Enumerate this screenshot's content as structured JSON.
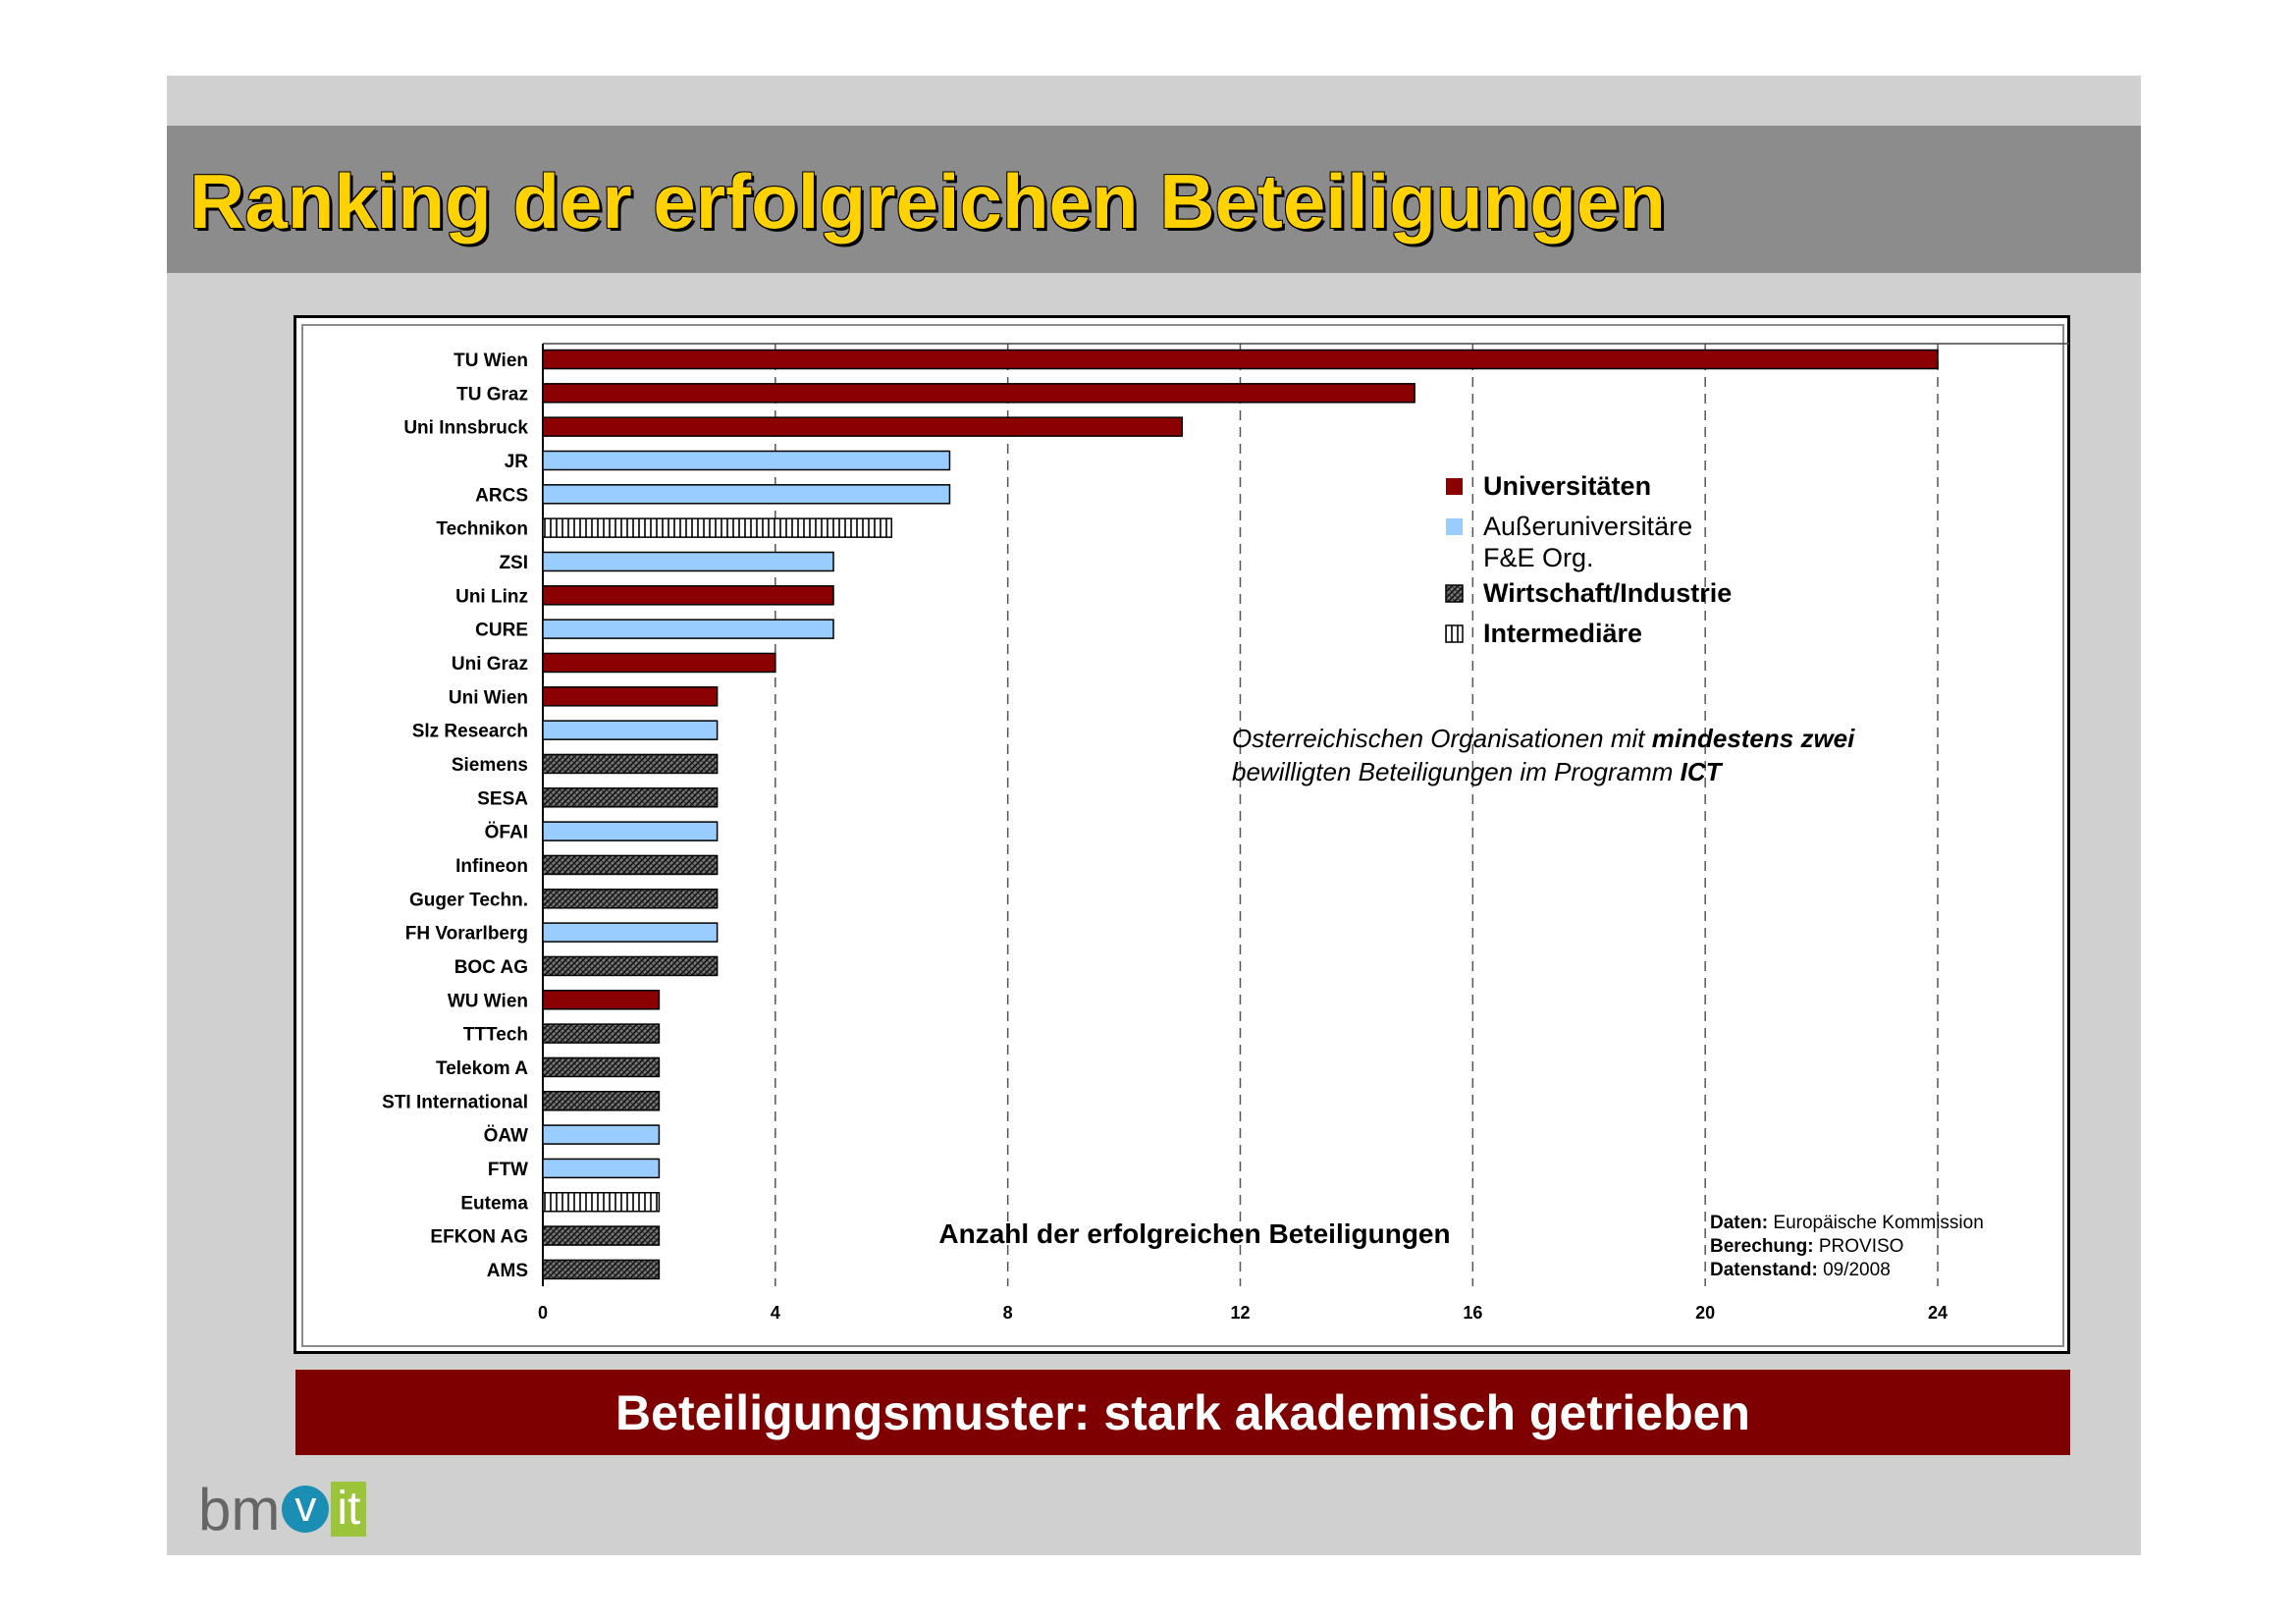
{
  "slide": {
    "title": "Ranking der erfolgreichen Beteiligungen",
    "banner": "Beteiligungsmuster: stark akademisch getrieben",
    "logo": {
      "prefix": "bm",
      "v": "v",
      "suffix": "it"
    }
  },
  "colors": {
    "universitaeten": "#8b0000",
    "ausseruniversitaere": "#99ccff",
    "wirtschaft": "#555555",
    "intermediaere": "#ffffff",
    "title_text": "#ffd200",
    "banner_bg": "#7f0000"
  },
  "chart_data": {
    "type": "bar",
    "orientation": "horizontal",
    "xlabel": "Anzahl der erfolgreichen Beteiligungen",
    "xlim": [
      0,
      24
    ],
    "xticks": [
      0,
      4,
      8,
      12,
      16,
      20,
      24
    ],
    "grid": "vertical dashed",
    "categories": [
      "TU Wien",
      "TU Graz",
      "Uni Innsbruck",
      "JR",
      "ARCS",
      "Technikon",
      "ZSI",
      "Uni Linz",
      "CURE",
      "Uni Graz",
      "Uni Wien",
      "Slz Research",
      "Siemens",
      "SESA",
      "ÖFAI",
      "Infineon",
      "Guger Techn.",
      "FH Vorarlberg",
      "BOC AG",
      "WU Wien",
      "TTTech",
      "Telekom A",
      "STI International",
      "ÖAW",
      "FTW",
      "Eutema",
      "EFKON AG",
      "AMS"
    ],
    "values": [
      24,
      15,
      11,
      7,
      7,
      6,
      5,
      5,
      5,
      4,
      3,
      3,
      3,
      3,
      3,
      3,
      3,
      3,
      3,
      2,
      2,
      2,
      2,
      2,
      2,
      2,
      2,
      2
    ],
    "groups": [
      "uni",
      "uni",
      "uni",
      "fe",
      "fe",
      "inter",
      "fe",
      "uni",
      "fe",
      "uni",
      "uni",
      "fe",
      "wirt",
      "wirt",
      "fe",
      "wirt",
      "wirt",
      "fe",
      "wirt",
      "uni",
      "wirt",
      "wirt",
      "wirt",
      "fe",
      "fe",
      "inter",
      "wirt",
      "wirt"
    ],
    "legend": {
      "placement": "right-middle",
      "items": [
        {
          "key": "uni",
          "label": "Universitäten",
          "bold": true
        },
        {
          "key": "fe",
          "label": "Außeruniversitäre F&E Org.",
          "bold": false
        },
        {
          "key": "wirt",
          "label": "Wirtschaft/Industrie",
          "bold": true
        },
        {
          "key": "inter",
          "label": "Intermediäre",
          "bold": true
        }
      ]
    },
    "annotation": {
      "line1_a": "Osterreichischen Organisationen mit ",
      "line1_b": "mindestens zwei",
      "line2_a": "bewilligten Beteiligungen im Programm ",
      "line2_b": "ICT"
    },
    "source": [
      {
        "label": "Daten:",
        "value": " Europäische Kommission"
      },
      {
        "label": "Berechung:",
        "value": " PROVISO"
      },
      {
        "label": "Datenstand:",
        "value": " 09/2008"
      }
    ]
  }
}
